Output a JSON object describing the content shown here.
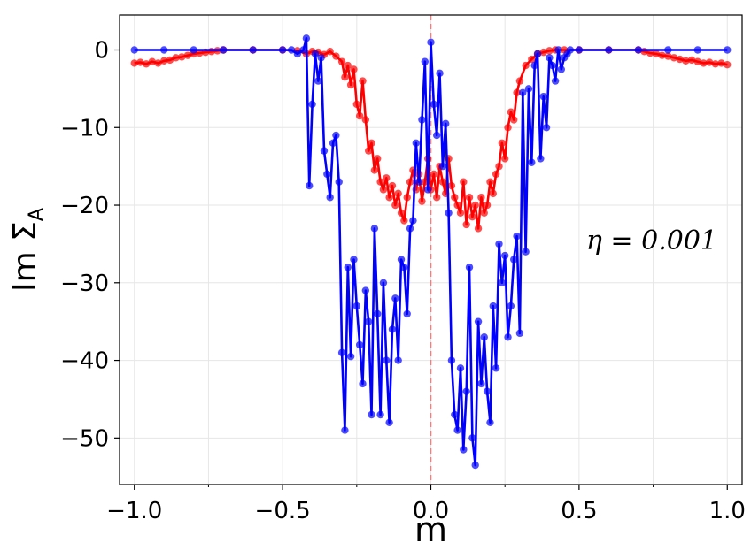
{
  "chart_data": {
    "type": "line",
    "xlabel": "m",
    "ylabel": "Im Σ",
    "ylabel_sub": "A",
    "annotation": "η = 0.001",
    "xlim": [
      -1.05,
      1.05
    ],
    "ylim": [
      -56,
      4.5
    ],
    "xticks": [
      -1.0,
      -0.5,
      0.0,
      0.5,
      1.0
    ],
    "xtick_labels": [
      "−1.0",
      "−0.5",
      "0.0",
      "0.5",
      "1.0"
    ],
    "yticks": [
      0,
      -10,
      -20,
      -30,
      -40,
      -50
    ],
    "ytick_labels": [
      "0",
      "−10",
      "−20",
      "−30",
      "−40",
      "−50"
    ],
    "vline_x": 0.0,
    "grid": true,
    "colors": {
      "red": "#ff0000",
      "blue": "#0000ff",
      "vline": "#f08080"
    },
    "series": [
      {
        "color": "#ff0000",
        "x": [
          -1.0,
          -0.98,
          -0.96,
          -0.94,
          -0.92,
          -0.9,
          -0.88,
          -0.86,
          -0.84,
          -0.82,
          -0.8,
          -0.78,
          -0.76,
          -0.74,
          -0.72,
          -0.7,
          -0.6,
          -0.5,
          -0.45,
          -0.42,
          -0.4,
          -0.38,
          -0.36,
          -0.34,
          -0.32,
          -0.3,
          -0.29,
          -0.28,
          -0.27,
          -0.26,
          -0.25,
          -0.24,
          -0.23,
          -0.22,
          -0.21,
          -0.2,
          -0.19,
          -0.18,
          -0.17,
          -0.16,
          -0.15,
          -0.14,
          -0.13,
          -0.12,
          -0.11,
          -0.1,
          -0.09,
          -0.08,
          -0.07,
          -0.06,
          -0.05,
          -0.04,
          -0.03,
          -0.02,
          -0.01,
          0.0,
          0.01,
          0.02,
          0.03,
          0.04,
          0.05,
          0.06,
          0.07,
          0.08,
          0.09,
          0.1,
          0.11,
          0.12,
          0.13,
          0.14,
          0.15,
          0.16,
          0.17,
          0.18,
          0.19,
          0.2,
          0.21,
          0.22,
          0.23,
          0.24,
          0.25,
          0.26,
          0.27,
          0.28,
          0.29,
          0.3,
          0.32,
          0.34,
          0.36,
          0.38,
          0.4,
          0.42,
          0.45,
          0.5,
          0.6,
          0.7,
          0.72,
          0.74,
          0.76,
          0.78,
          0.8,
          0.82,
          0.84,
          0.86,
          0.88,
          0.9,
          0.92,
          0.94,
          0.96,
          0.98,
          1.0
        ],
        "y": [
          -1.7,
          -1.6,
          -1.8,
          -1.5,
          -1.7,
          -1.4,
          -1.3,
          -1.0,
          -0.9,
          -0.7,
          -0.5,
          -0.4,
          -0.3,
          -0.2,
          -0.1,
          0.0,
          0.0,
          0.0,
          -0.1,
          -0.5,
          -0.2,
          -0.3,
          -0.6,
          -0.2,
          -0.8,
          -1.5,
          -3.5,
          -2.0,
          -4.5,
          -2.5,
          -7.0,
          -8.5,
          -4.0,
          -9.0,
          -13.0,
          -12.0,
          -15.5,
          -14.0,
          -17.0,
          -18.0,
          -16.5,
          -19.0,
          -17.5,
          -20.0,
          -18.5,
          -21.0,
          -22.0,
          -19.0,
          -17.0,
          -15.5,
          -18.0,
          -16.0,
          -19.5,
          -17.0,
          -14.0,
          -18.0,
          -16.0,
          -19.0,
          -15.0,
          -17.0,
          -18.5,
          -14.0,
          -17.5,
          -19.0,
          -20.0,
          -21.0,
          -17.0,
          -22.5,
          -19.0,
          -21.5,
          -20.0,
          -23.0,
          -19.0,
          -21.0,
          -20.0,
          -17.0,
          -18.5,
          -16.0,
          -15.0,
          -12.0,
          -14.0,
          -10.0,
          -8.0,
          -9.0,
          -5.5,
          -4.0,
          -2.0,
          -1.2,
          -0.5,
          -0.3,
          -0.1,
          0.0,
          0.0,
          0.0,
          0.0,
          0.0,
          -0.2,
          -0.4,
          -0.5,
          -0.7,
          -0.8,
          -1.0,
          -1.2,
          -1.4,
          -1.3,
          -1.5,
          -1.7,
          -1.6,
          -1.8,
          -1.7,
          -1.9
        ]
      },
      {
        "color": "#0000ff",
        "x": [
          -1.0,
          -0.9,
          -0.8,
          -0.7,
          -0.6,
          -0.5,
          -0.47,
          -0.45,
          -0.43,
          -0.42,
          -0.41,
          -0.4,
          -0.39,
          -0.38,
          -0.37,
          -0.36,
          -0.35,
          -0.34,
          -0.33,
          -0.32,
          -0.31,
          -0.3,
          -0.29,
          -0.28,
          -0.27,
          -0.26,
          -0.25,
          -0.24,
          -0.23,
          -0.22,
          -0.21,
          -0.2,
          -0.19,
          -0.18,
          -0.17,
          -0.16,
          -0.15,
          -0.14,
          -0.13,
          -0.12,
          -0.11,
          -0.1,
          -0.09,
          -0.08,
          -0.07,
          -0.06,
          -0.05,
          -0.04,
          -0.03,
          -0.02,
          -0.01,
          0.0,
          0.01,
          0.02,
          0.03,
          0.04,
          0.05,
          0.06,
          0.07,
          0.08,
          0.09,
          0.1,
          0.11,
          0.12,
          0.13,
          0.14,
          0.15,
          0.16,
          0.17,
          0.18,
          0.19,
          0.2,
          0.21,
          0.22,
          0.23,
          0.24,
          0.25,
          0.26,
          0.27,
          0.28,
          0.29,
          0.3,
          0.31,
          0.32,
          0.33,
          0.34,
          0.35,
          0.36,
          0.37,
          0.38,
          0.39,
          0.4,
          0.41,
          0.42,
          0.43,
          0.44,
          0.45,
          0.46,
          0.47,
          0.5,
          0.6,
          0.7,
          0.8,
          0.9,
          1.0
        ],
        "y": [
          0.0,
          0.0,
          0.0,
          0.0,
          0.0,
          0.0,
          0.0,
          -0.5,
          0.0,
          1.5,
          -17.5,
          -7.0,
          -0.5,
          -4.0,
          -1.0,
          -13.0,
          -16.0,
          -19.0,
          -12.0,
          -11.0,
          -17.0,
          -39.0,
          -49.0,
          -28.0,
          -39.5,
          -27.0,
          -33.0,
          -38.0,
          -43.0,
          -31.0,
          -35.0,
          -47.0,
          -23.0,
          -34.0,
          -47.0,
          -30.0,
          -40.0,
          -48.0,
          -36.0,
          -32.0,
          -40.0,
          -27.0,
          -28.0,
          -34.0,
          -23.0,
          -22.0,
          -12.0,
          -17.0,
          -9.0,
          -1.5,
          -18.0,
          1.0,
          -7.0,
          -11.0,
          -3.0,
          -15.0,
          -9.5,
          -21.0,
          -40.0,
          -47.0,
          -49.0,
          -41.0,
          -51.5,
          -44.0,
          -28.0,
          -50.0,
          -53.5,
          -35.0,
          -43.0,
          -37.0,
          -44.0,
          -48.0,
          -33.0,
          -41.0,
          -25.0,
          -30.0,
          -26.5,
          -37.0,
          -33.0,
          -27.0,
          -24.0,
          -36.5,
          -5.5,
          -26.0,
          -5.0,
          -14.5,
          -2.0,
          -0.5,
          -14.0,
          -6.0,
          -10.0,
          -1.0,
          -2.0,
          -4.0,
          0.0,
          -2.5,
          -1.0,
          -0.5,
          0.0,
          0.0,
          0.0,
          0.0,
          0.0,
          0.0,
          0.0
        ]
      }
    ]
  }
}
